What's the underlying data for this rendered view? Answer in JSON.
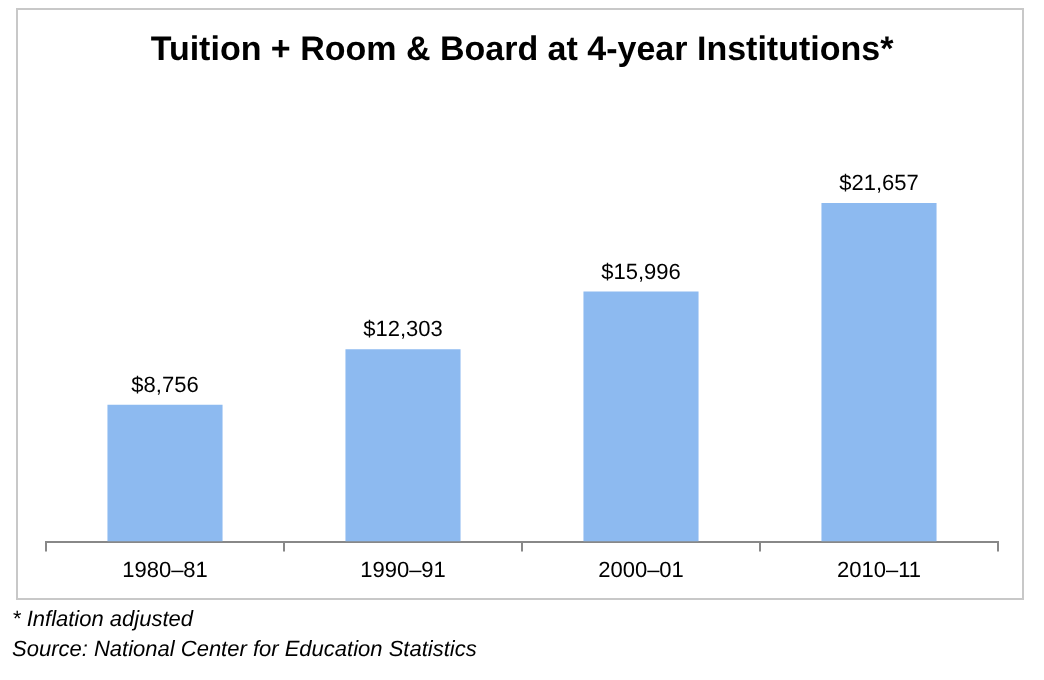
{
  "chart_data": {
    "type": "bar",
    "title": "Tuition + Room & Board at 4-year Institutions*",
    "categories": [
      "1980–81",
      "1990–91",
      "2000–01",
      "2010–11"
    ],
    "values": [
      8756,
      12303,
      15996,
      21657
    ],
    "value_labels": [
      "$8,756",
      "$12,303",
      "$15,996",
      "$21,657"
    ],
    "color": "#8dbaf0",
    "grid": false,
    "legend": false,
    "tick_labels": "x",
    "annotations": [
      "* Inflation adjusted",
      "Source: National Center for Education Statistics"
    ]
  }
}
